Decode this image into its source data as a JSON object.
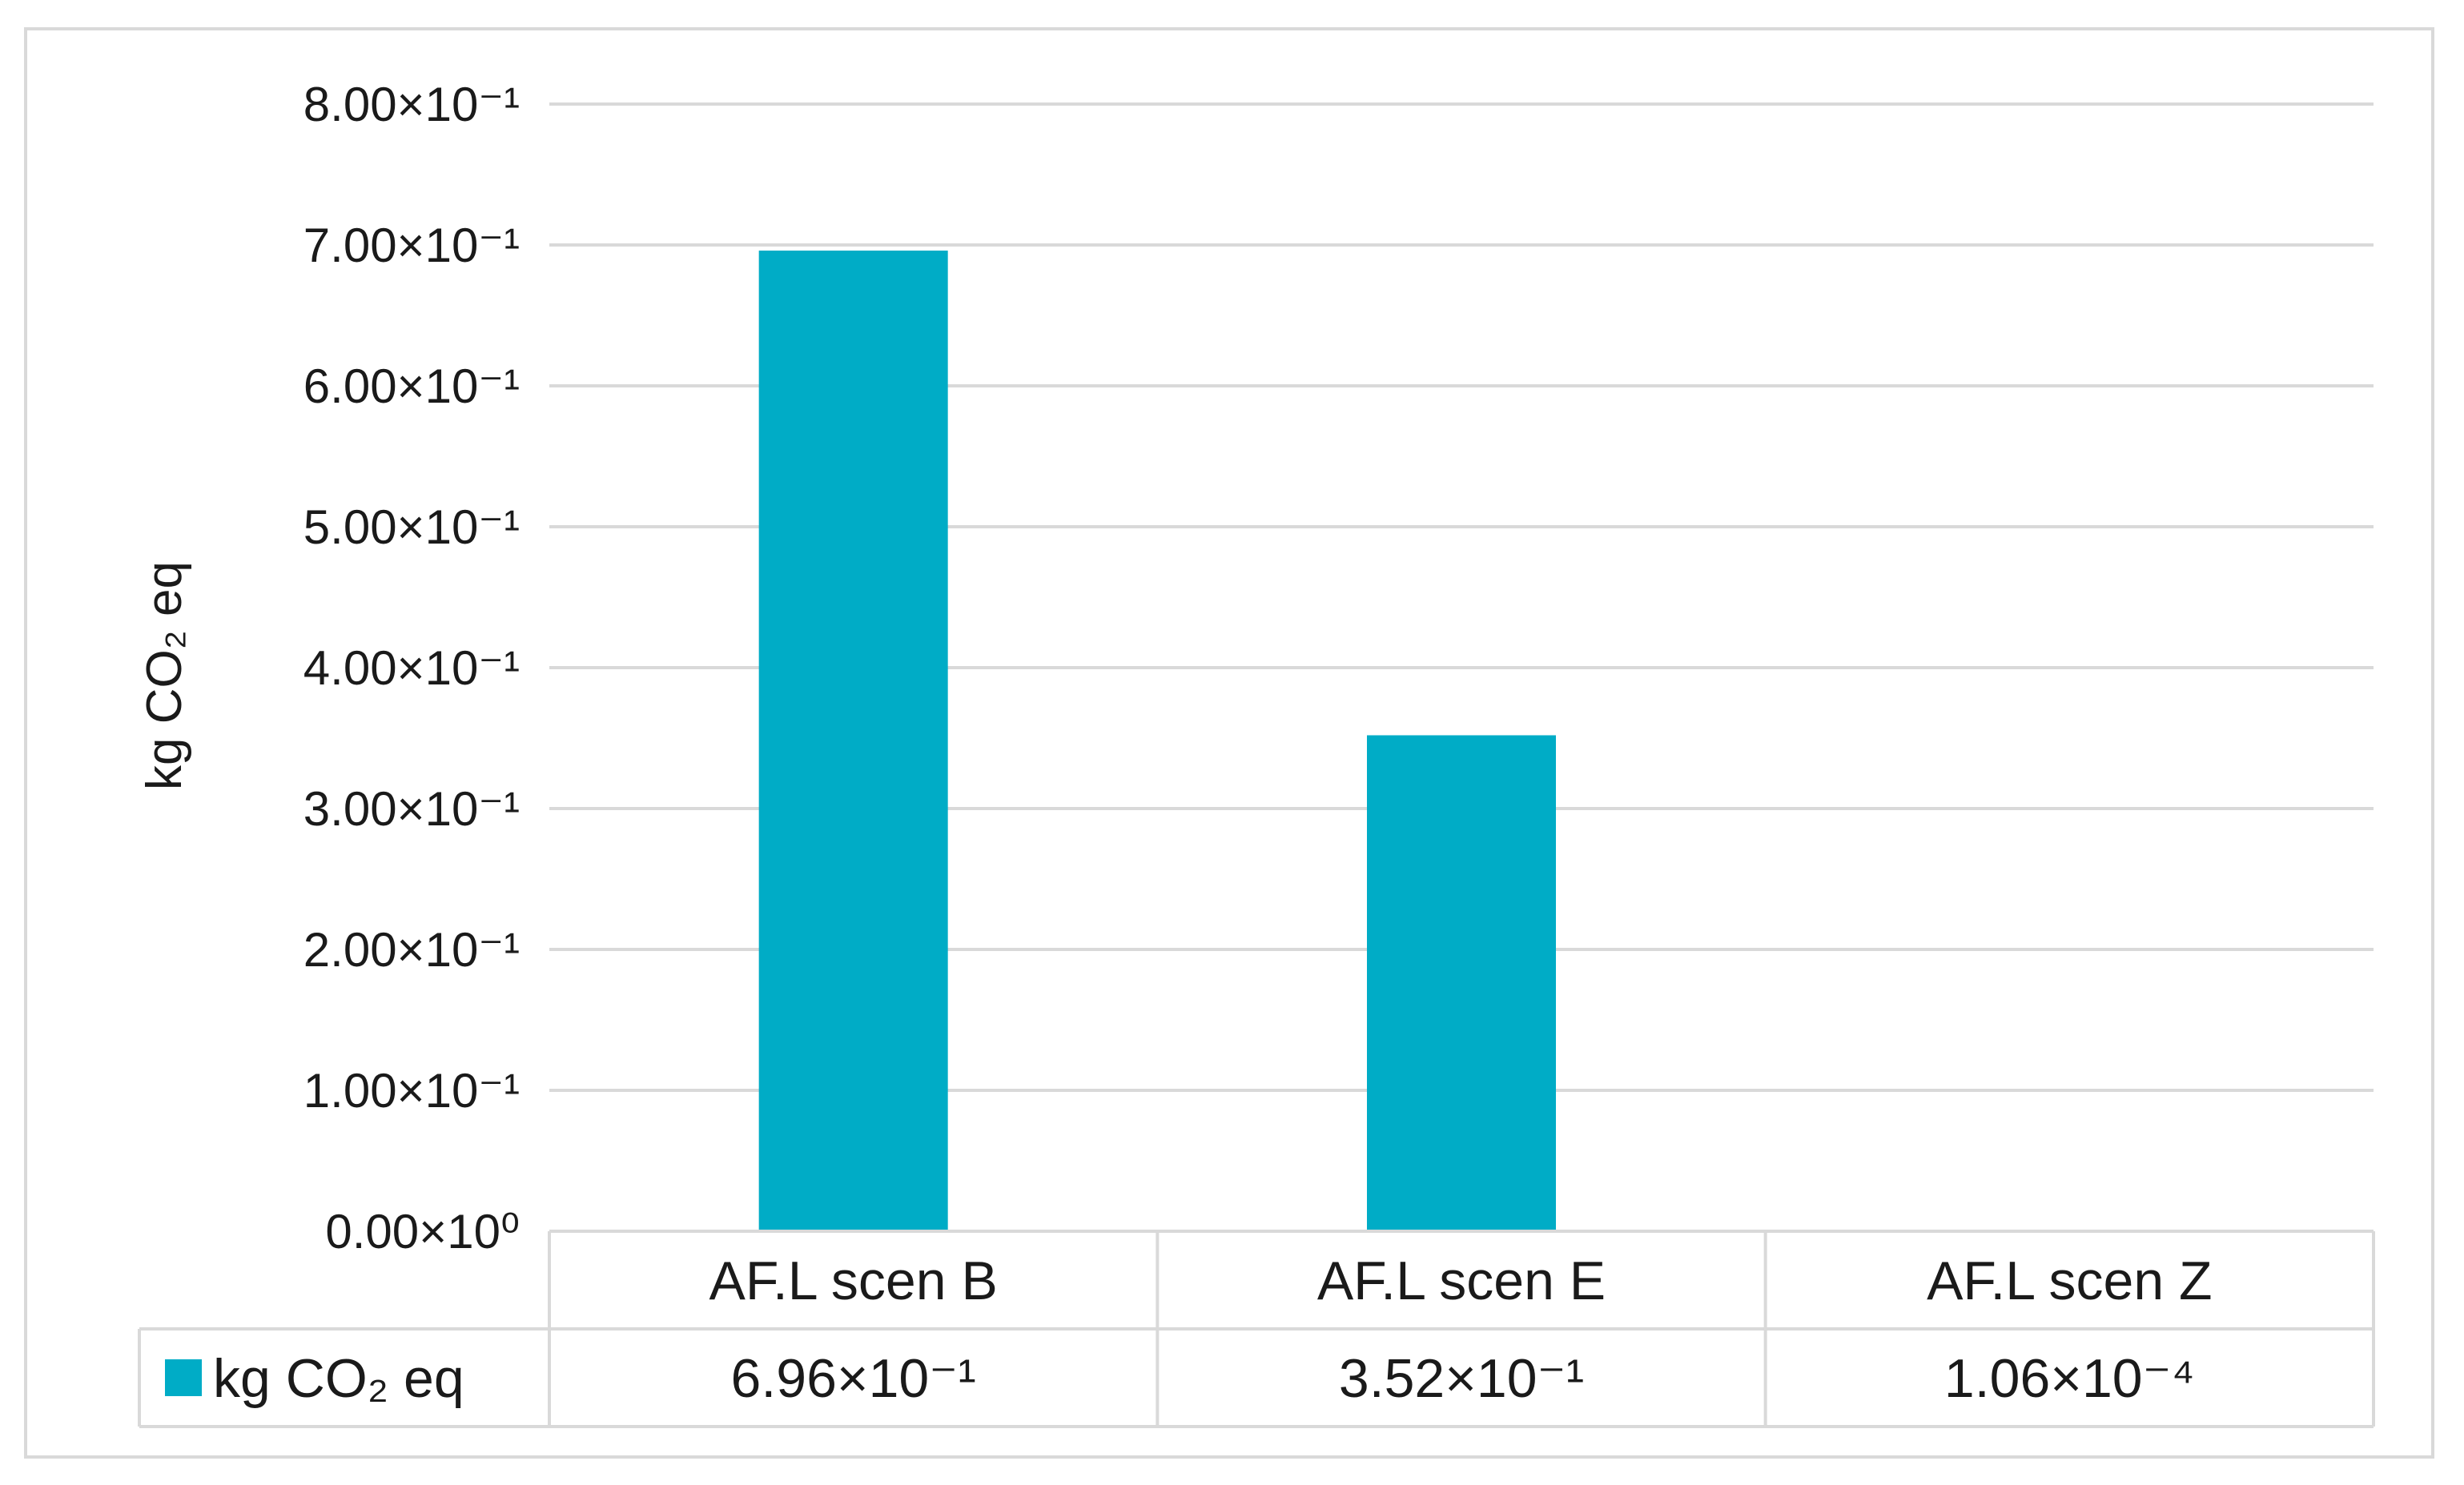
{
  "chart_data": {
    "type": "bar",
    "categories": [
      "AF.L scen B",
      "AF.L scen E",
      "AF.L scen Z"
    ],
    "series": [
      {
        "name": "kg CO₂ eq",
        "values": [
          0.696,
          0.352,
          0.000106
        ],
        "value_labels": [
          "6.96×10⁻¹",
          "3.52×10⁻¹",
          "1.06×10⁻⁴"
        ],
        "color": "#00acc6"
      }
    ],
    "ylabel": "kg CO₂ eq",
    "ylim": [
      0,
      0.8
    ],
    "yticks": [
      0,
      0.1,
      0.2,
      0.3,
      0.4,
      0.5,
      0.6,
      0.7,
      0.8
    ],
    "ytick_labels": [
      "0.00×10⁰",
      "1.00×10⁻¹",
      "2.00×10⁻¹",
      "3.00×10⁻¹",
      "4.00×10⁻¹",
      "5.00×10⁻¹",
      "6.00×10⁻¹",
      "7.00×10⁻¹",
      "8.00×10⁻¹"
    ],
    "grid": true,
    "legend": "data-table"
  }
}
